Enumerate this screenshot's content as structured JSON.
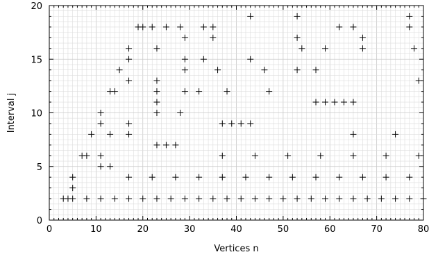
{
  "chart_data": {
    "type": "scatter",
    "title": "",
    "xlabel": "Vertices n",
    "ylabel": "Interval j",
    "xlim": [
      0,
      80
    ],
    "ylim": [
      0,
      20
    ],
    "xticks": [
      0,
      10,
      20,
      30,
      40,
      50,
      60,
      70,
      80
    ],
    "yticks": [
      0,
      5,
      10,
      15,
      20
    ],
    "xtick_labels": [
      "0",
      "10",
      "20",
      "30",
      "40",
      "50",
      "60",
      "70",
      "80"
    ],
    "ytick_labels": [
      "0",
      "5",
      "10",
      "15",
      "20"
    ],
    "grid": true,
    "marker": "+",
    "marker_color": "#000000",
    "points": [
      {
        "x": 3,
        "y": 2
      },
      {
        "x": 4,
        "y": 2
      },
      {
        "x": 5,
        "y": 2
      },
      {
        "x": 5,
        "y": 3
      },
      {
        "x": 5,
        "y": 4
      },
      {
        "x": 7,
        "y": 6
      },
      {
        "x": 8,
        "y": 6
      },
      {
        "x": 8,
        "y": 2
      },
      {
        "x": 9,
        "y": 8
      },
      {
        "x": 11,
        "y": 2
      },
      {
        "x": 11,
        "y": 5
      },
      {
        "x": 11,
        "y": 6
      },
      {
        "x": 11,
        "y": 9
      },
      {
        "x": 11,
        "y": 10
      },
      {
        "x": 13,
        "y": 5
      },
      {
        "x": 13,
        "y": 8
      },
      {
        "x": 13,
        "y": 12
      },
      {
        "x": 14,
        "y": 12
      },
      {
        "x": 14,
        "y": 2
      },
      {
        "x": 15,
        "y": 14
      },
      {
        "x": 17,
        "y": 2
      },
      {
        "x": 17,
        "y": 4
      },
      {
        "x": 17,
        "y": 8
      },
      {
        "x": 17,
        "y": 9
      },
      {
        "x": 17,
        "y": 13
      },
      {
        "x": 17,
        "y": 15
      },
      {
        "x": 17,
        "y": 16
      },
      {
        "x": 19,
        "y": 18
      },
      {
        "x": 20,
        "y": 18
      },
      {
        "x": 20,
        "y": 2
      },
      {
        "x": 22,
        "y": 4
      },
      {
        "x": 22,
        "y": 18
      },
      {
        "x": 23,
        "y": 2
      },
      {
        "x": 23,
        "y": 7
      },
      {
        "x": 23,
        "y": 10
      },
      {
        "x": 23,
        "y": 11
      },
      {
        "x": 23,
        "y": 12
      },
      {
        "x": 23,
        "y": 13
      },
      {
        "x": 23,
        "y": 16
      },
      {
        "x": 25,
        "y": 7
      },
      {
        "x": 25,
        "y": 18
      },
      {
        "x": 26,
        "y": 2
      },
      {
        "x": 27,
        "y": 4
      },
      {
        "x": 27,
        "y": 7
      },
      {
        "x": 28,
        "y": 10
      },
      {
        "x": 28,
        "y": 18
      },
      {
        "x": 29,
        "y": 2
      },
      {
        "x": 29,
        "y": 12
      },
      {
        "x": 29,
        "y": 14
      },
      {
        "x": 29,
        "y": 15
      },
      {
        "x": 29,
        "y": 17
      },
      {
        "x": 32,
        "y": 2
      },
      {
        "x": 32,
        "y": 4
      },
      {
        "x": 32,
        "y": 12
      },
      {
        "x": 33,
        "y": 15
      },
      {
        "x": 33,
        "y": 18
      },
      {
        "x": 35,
        "y": 2
      },
      {
        "x": 35,
        "y": 17
      },
      {
        "x": 35,
        "y": 18
      },
      {
        "x": 36,
        "y": 14
      },
      {
        "x": 37,
        "y": 4
      },
      {
        "x": 37,
        "y": 6
      },
      {
        "x": 37,
        "y": 9
      },
      {
        "x": 38,
        "y": 2
      },
      {
        "x": 38,
        "y": 12
      },
      {
        "x": 39,
        "y": 9
      },
      {
        "x": 41,
        "y": 2
      },
      {
        "x": 41,
        "y": 9
      },
      {
        "x": 42,
        "y": 4
      },
      {
        "x": 43,
        "y": 9
      },
      {
        "x": 43,
        "y": 15
      },
      {
        "x": 43,
        "y": 19
      },
      {
        "x": 44,
        "y": 2
      },
      {
        "x": 44,
        "y": 6
      },
      {
        "x": 46,
        "y": 14
      },
      {
        "x": 47,
        "y": 2
      },
      {
        "x": 47,
        "y": 4
      },
      {
        "x": 47,
        "y": 12
      },
      {
        "x": 50,
        "y": 2
      },
      {
        "x": 51,
        "y": 6
      },
      {
        "x": 52,
        "y": 4
      },
      {
        "x": 53,
        "y": 2
      },
      {
        "x": 53,
        "y": 14
      },
      {
        "x": 53,
        "y": 17
      },
      {
        "x": 53,
        "y": 19
      },
      {
        "x": 54,
        "y": 16
      },
      {
        "x": 56,
        "y": 2
      },
      {
        "x": 57,
        "y": 4
      },
      {
        "x": 57,
        "y": 11
      },
      {
        "x": 57,
        "y": 14
      },
      {
        "x": 58,
        "y": 6
      },
      {
        "x": 59,
        "y": 2
      },
      {
        "x": 59,
        "y": 11
      },
      {
        "x": 59,
        "y": 16
      },
      {
        "x": 61,
        "y": 11
      },
      {
        "x": 62,
        "y": 2
      },
      {
        "x": 62,
        "y": 4
      },
      {
        "x": 62,
        "y": 18
      },
      {
        "x": 63,
        "y": 11
      },
      {
        "x": 65,
        "y": 2
      },
      {
        "x": 65,
        "y": 6
      },
      {
        "x": 65,
        "y": 8
      },
      {
        "x": 65,
        "y": 11
      },
      {
        "x": 65,
        "y": 18
      },
      {
        "x": 67,
        "y": 4
      },
      {
        "x": 67,
        "y": 16
      },
      {
        "x": 67,
        "y": 17
      },
      {
        "x": 68,
        "y": 2
      },
      {
        "x": 71,
        "y": 2
      },
      {
        "x": 72,
        "y": 4
      },
      {
        "x": 72,
        "y": 6
      },
      {
        "x": 74,
        "y": 2
      },
      {
        "x": 74,
        "y": 8
      },
      {
        "x": 77,
        "y": 2
      },
      {
        "x": 77,
        "y": 4
      },
      {
        "x": 77,
        "y": 18
      },
      {
        "x": 77,
        "y": 19
      },
      {
        "x": 78,
        "y": 16
      },
      {
        "x": 79,
        "y": 6
      },
      {
        "x": 79,
        "y": 13
      },
      {
        "x": 80,
        "y": 2
      }
    ]
  }
}
